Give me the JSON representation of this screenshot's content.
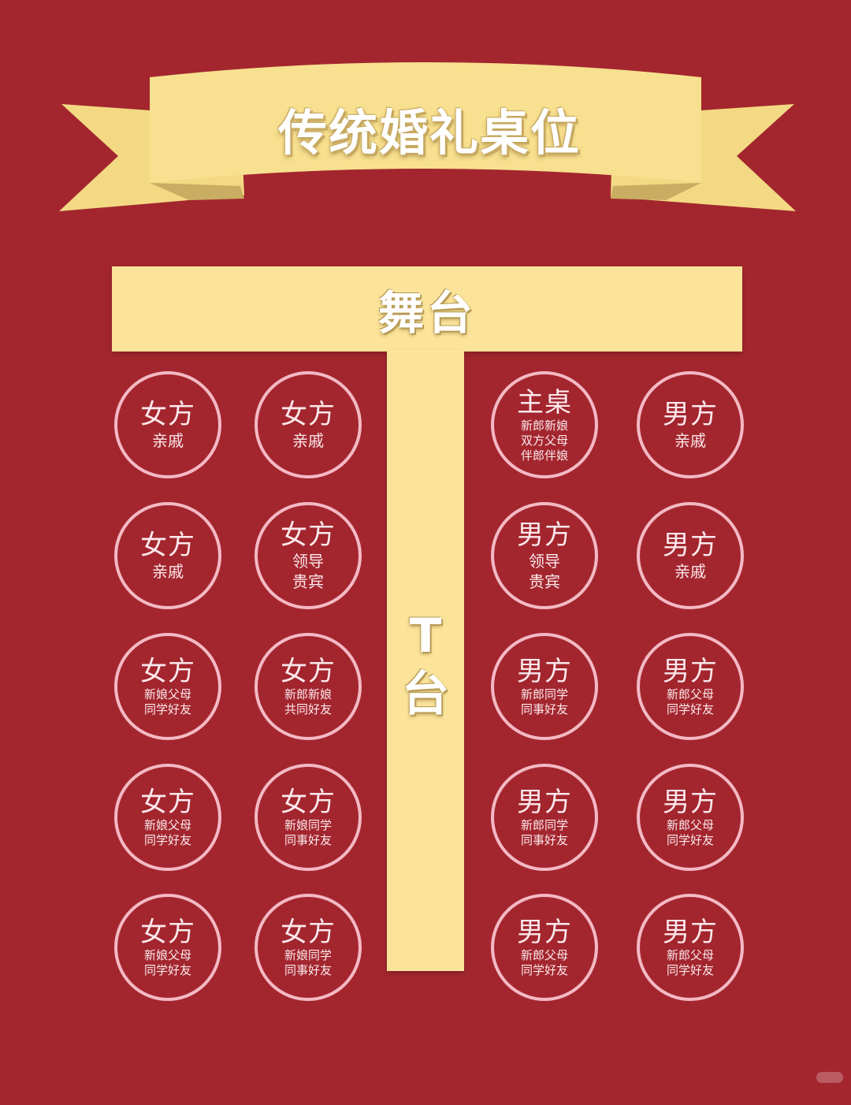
{
  "title": "传统婚礼桌位",
  "stage": {
    "label": "舞台"
  },
  "runway": {
    "label_line1": "T",
    "label_line2": "台"
  },
  "colors": {
    "background": "#a3262e",
    "banner": "#f7e08f",
    "banner_shadow": "#d3b86a",
    "stage": "#fbe49a",
    "table_ring": "#f4b9c4",
    "table_text": "#fbe8ec"
  },
  "tables": [
    {
      "row": 1,
      "col": 1,
      "main": "女方",
      "lines": [
        "亲戚"
      ]
    },
    {
      "row": 1,
      "col": 2,
      "main": "女方",
      "lines": [
        "亲戚"
      ]
    },
    {
      "row": 1,
      "col": 3,
      "main": "主桌",
      "lines": [
        "新郎新娘",
        "双方父母",
        "伴郎伴娘"
      ],
      "small": true
    },
    {
      "row": 1,
      "col": 4,
      "main": "男方",
      "lines": [
        "亲戚"
      ]
    },
    {
      "row": 2,
      "col": 1,
      "main": "女方",
      "lines": [
        "亲戚"
      ]
    },
    {
      "row": 2,
      "col": 2,
      "main": "女方",
      "lines": [
        "领导",
        "贵宾"
      ]
    },
    {
      "row": 2,
      "col": 3,
      "main": "男方",
      "lines": [
        "领导",
        "贵宾"
      ]
    },
    {
      "row": 2,
      "col": 4,
      "main": "男方",
      "lines": [
        "亲戚"
      ]
    },
    {
      "row": 3,
      "col": 1,
      "main": "女方",
      "lines": [
        "新娘父母",
        "同学好友"
      ],
      "small": true
    },
    {
      "row": 3,
      "col": 2,
      "main": "女方",
      "lines": [
        "新郎新娘",
        "共同好友"
      ],
      "small": true
    },
    {
      "row": 3,
      "col": 3,
      "main": "男方",
      "lines": [
        "新郎同学",
        "同事好友"
      ],
      "small": true
    },
    {
      "row": 3,
      "col": 4,
      "main": "男方",
      "lines": [
        "新郎父母",
        "同学好友"
      ],
      "small": true
    },
    {
      "row": 4,
      "col": 1,
      "main": "女方",
      "lines": [
        "新娘父母",
        "同学好友"
      ],
      "small": true
    },
    {
      "row": 4,
      "col": 2,
      "main": "女方",
      "lines": [
        "新娘同学",
        "同事好友"
      ],
      "small": true
    },
    {
      "row": 4,
      "col": 3,
      "main": "男方",
      "lines": [
        "新郎同学",
        "同事好友"
      ],
      "small": true
    },
    {
      "row": 4,
      "col": 4,
      "main": "男方",
      "lines": [
        "新郎父母",
        "同学好友"
      ],
      "small": true
    },
    {
      "row": 5,
      "col": 1,
      "main": "女方",
      "lines": [
        "新娘父母",
        "同学好友"
      ],
      "small": true
    },
    {
      "row": 5,
      "col": 2,
      "main": "女方",
      "lines": [
        "新娘同学",
        "同事好友"
      ],
      "small": true
    },
    {
      "row": 5,
      "col": 3,
      "main": "男方",
      "lines": [
        "新郎父母",
        "同学好友"
      ],
      "small": true
    },
    {
      "row": 5,
      "col": 4,
      "main": "男方",
      "lines": [
        "新郎父母",
        "同学好友"
      ],
      "small": true
    }
  ]
}
